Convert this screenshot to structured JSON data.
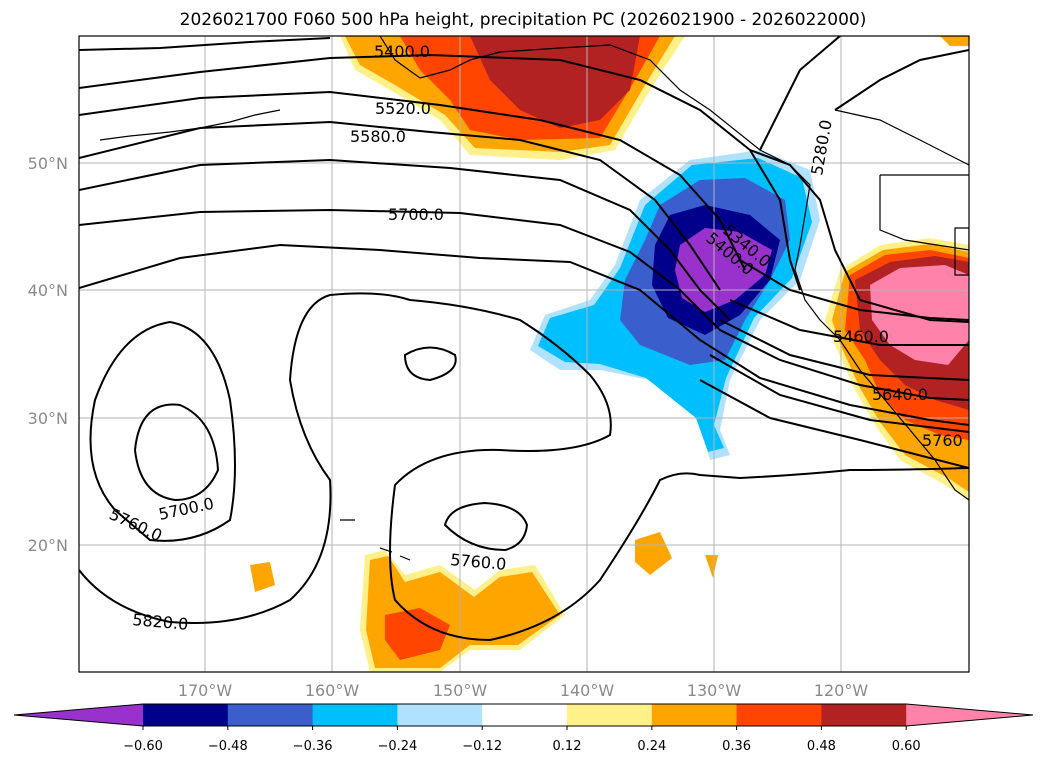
{
  "title": "2026021700 F060 500 hPa height, precipitation PC (2026021900 - 2026022000)",
  "map": {
    "lat_labels": [
      "50°N",
      "40°N",
      "30°N",
      "20°N"
    ],
    "lon_labels": [
      "170°W",
      "160°W",
      "150°W",
      "140°W",
      "130°W",
      "120°W"
    ],
    "contour_labels": [
      "5400.0",
      "5520.0",
      "5580.0",
      "5700.0",
      "5280.0",
      "5340.0",
      "5400.0",
      "5460.0",
      "5640.0",
      "5760",
      "5700.0",
      "5760.0",
      "5760.0",
      "5820.0"
    ]
  },
  "colorbar": {
    "ticks": [
      "−0.60",
      "−0.48",
      "−0.36",
      "−0.24",
      "−0.12",
      "0.12",
      "0.24",
      "0.36",
      "0.48",
      "0.60"
    ],
    "colors": [
      "#9932cc",
      "#00008b",
      "#3a5fcd",
      "#00bfff",
      "#b0e2ff",
      "#ffffff",
      "#fff08a",
      "#ffa500",
      "#ff4500",
      "#b22222",
      "#ff82ab"
    ]
  }
}
